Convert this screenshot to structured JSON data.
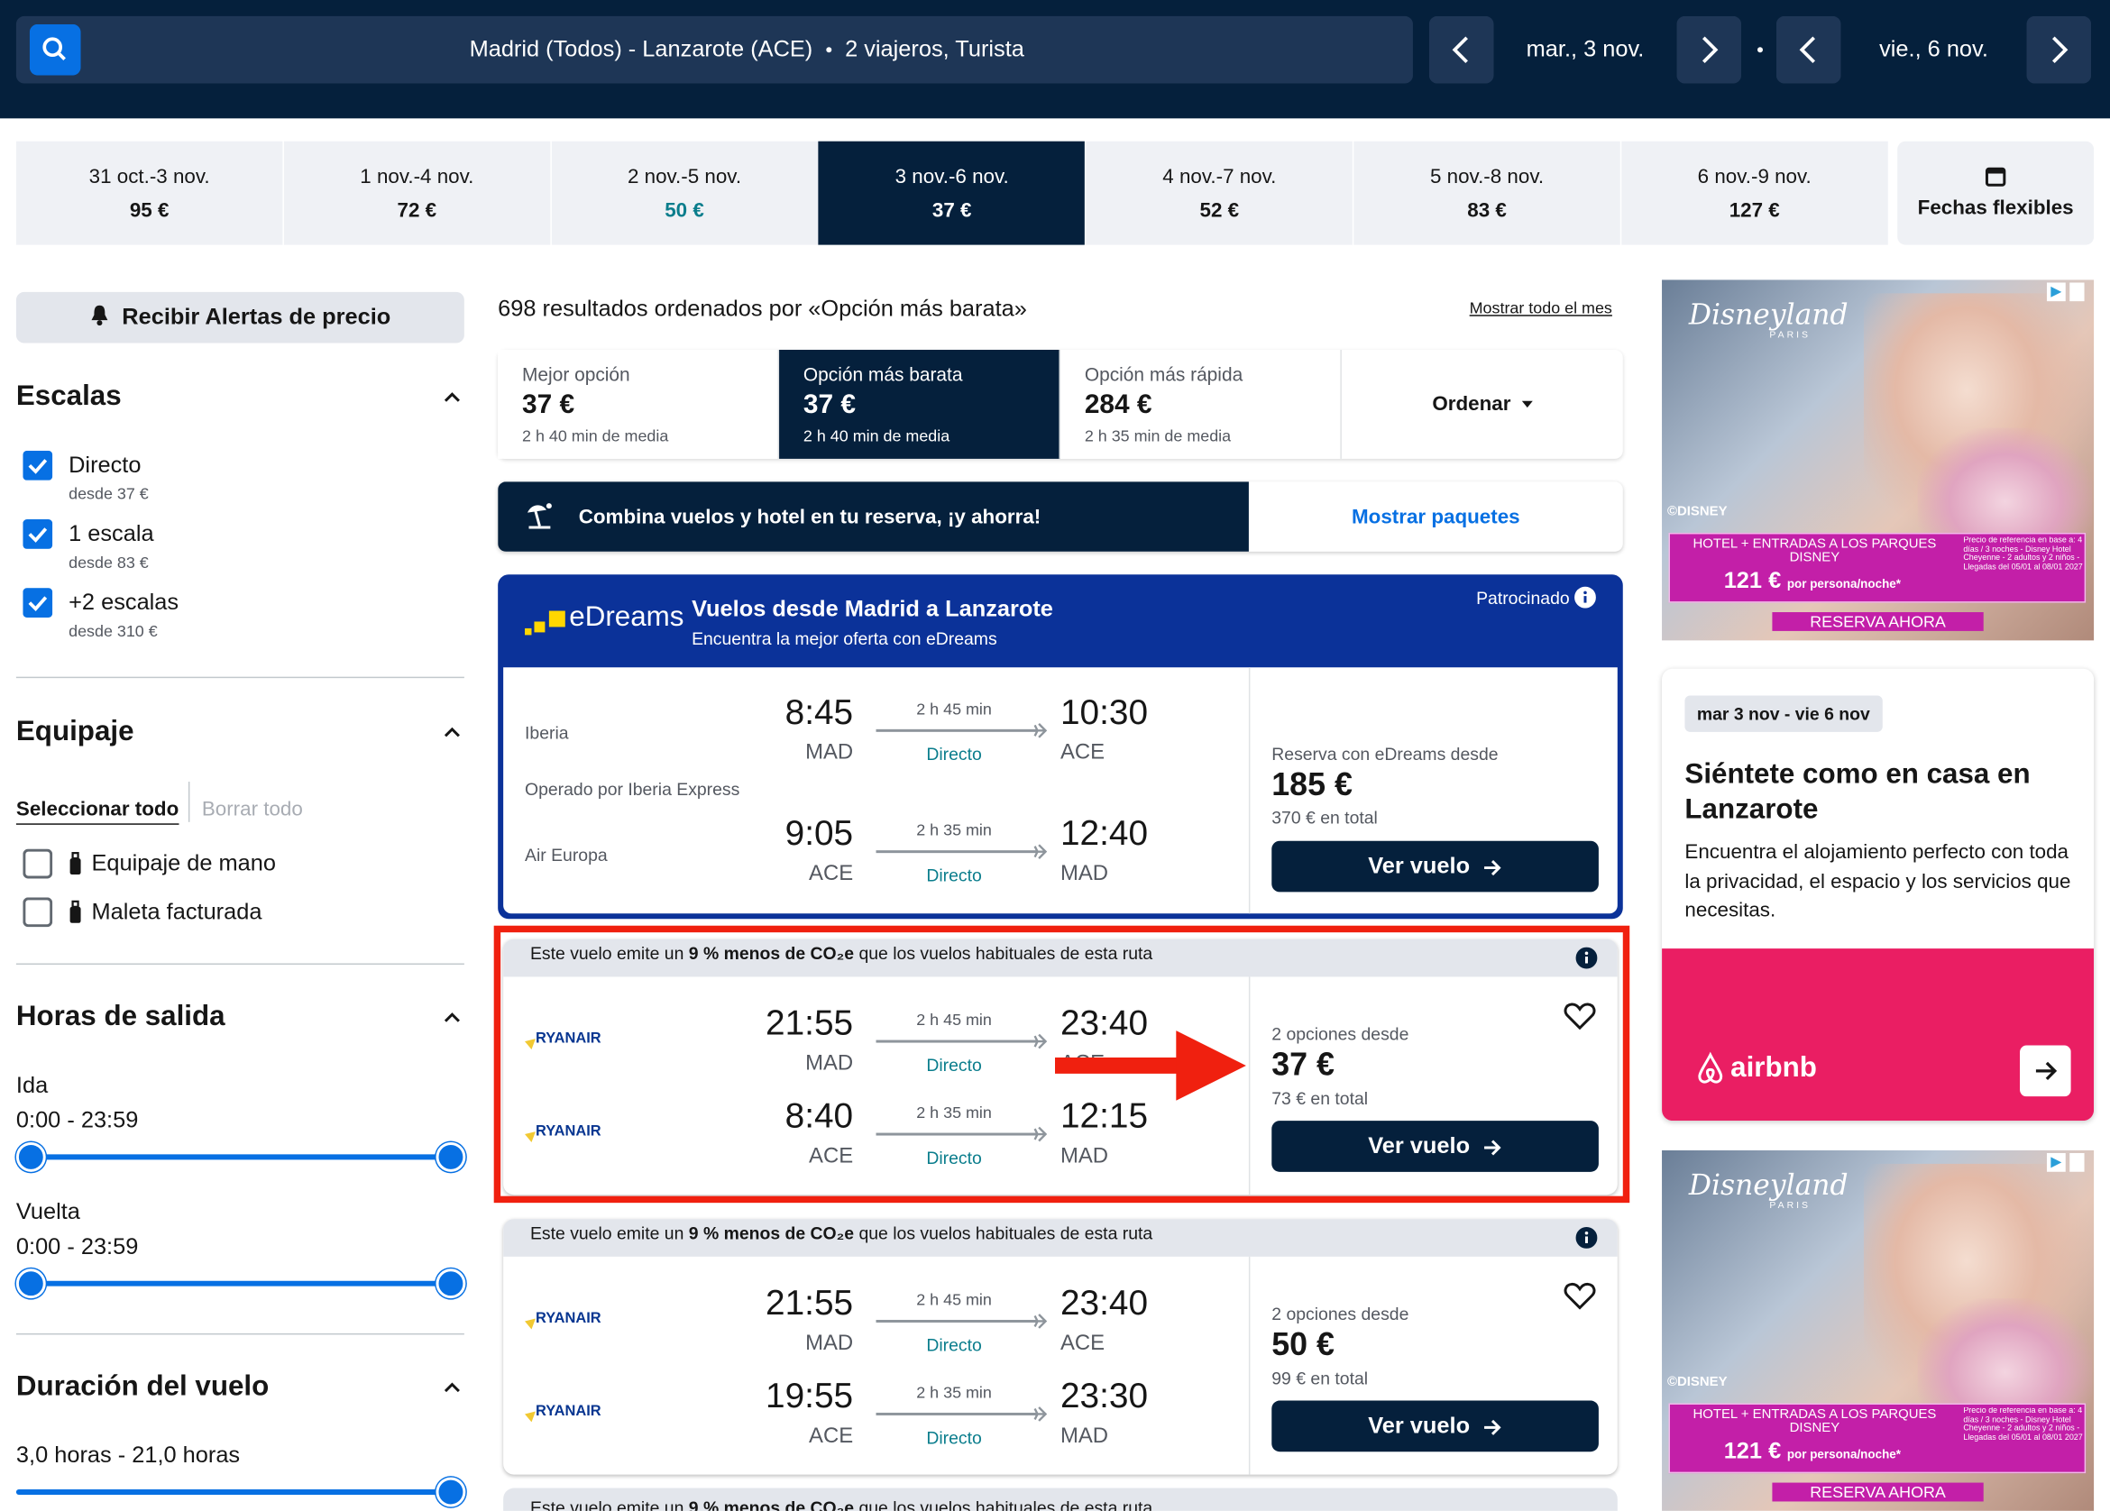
{
  "header": {
    "route": "Madrid (Todos) - Lanzarote (ACE)",
    "travelers": "2 viajeros, Turista",
    "depart": "mar., 3 nov.",
    "return": "vie., 6 nov."
  },
  "dates": {
    "items": [
      {
        "range": "31 oct.-3 nov.",
        "price": "95 €"
      },
      {
        "range": "1 nov.-4 nov.",
        "price": "72 €"
      },
      {
        "range": "2 nov.-5 nov.",
        "price": "50 €"
      },
      {
        "range": "3 nov.-6 nov.",
        "price": "37 €"
      },
      {
        "range": "4 nov.-7 nov.",
        "price": "52 €"
      },
      {
        "range": "5 nov.-8 nov.",
        "price": "83 €"
      },
      {
        "range": "6 nov.-9 nov.",
        "price": "127 €"
      }
    ],
    "flexible": "Fechas flexibles"
  },
  "sidebar": {
    "alert": "Recibir Alertas de precio",
    "stops": {
      "title": "Escalas",
      "options": [
        {
          "label": "Directo",
          "from": "desde 37 €"
        },
        {
          "label": "1 escala",
          "from": "desde 83 €"
        },
        {
          "label": "+2 escalas",
          "from": "desde 310 €"
        }
      ]
    },
    "baggage": {
      "title": "Equipaje",
      "select_all": "Seleccionar todo",
      "clear_all": "Borrar todo",
      "options": [
        "Equipaje de mano",
        "Maleta facturada"
      ]
    },
    "times": {
      "title": "Horas de salida",
      "outbound": "Ida",
      "outbound_range": "0:00 - 23:59",
      "return": "Vuelta",
      "return_range": "0:00 - 23:59"
    },
    "duration": {
      "title": "Duración del vuelo",
      "range": "3,0 horas - 21,0 horas"
    }
  },
  "results": {
    "summary": "698 resultados ordenados por «Opción más barata»",
    "show_month": "Mostrar todo el mes",
    "tabs": [
      {
        "label": "Mejor opción",
        "price": "37 €",
        "sub": "2 h 40 min de media"
      },
      {
        "label": "Opción más barata",
        "price": "37 €",
        "sub": "2 h 40 min de media"
      },
      {
        "label": "Opción más rápida",
        "price": "284 €",
        "sub": "2 h 35 min de media"
      }
    ],
    "sort": "Ordenar",
    "banner": {
      "text": "Combina vuelos y hotel en tu reserva, ¡y ahorra!",
      "action": "Mostrar paquetes"
    },
    "sponsored": {
      "brand": "eDreams",
      "title": "Vuelos desde Madrid a Lanzarote",
      "subtitle": "Encuentra la mejor oferta con eDreams",
      "tag": "Patrocinado",
      "legs": [
        {
          "airline": "Iberia",
          "dep": "8:45",
          "dep_code": "MAD",
          "duration": "2 h 45 min",
          "stops": "Directo",
          "arr": "10:30",
          "arr_code": "ACE"
        },
        {
          "airline": "Air Europa",
          "dep": "9:05",
          "dep_code": "ACE",
          "duration": "2 h 35 min",
          "stops": "Directo",
          "arr": "12:40",
          "arr_code": "MAD"
        }
      ],
      "operated": "Operado por Iberia Express",
      "from": "Reserva con eDreams desde",
      "price": "185 €",
      "total": "370 € en total",
      "button": "Ver vuelo"
    },
    "co2": {
      "pre": "Este vuelo emite un ",
      "bold": "9 % menos de CO₂e",
      "post": " que los vuelos habituales de esta ruta"
    },
    "cards": [
      {
        "legs": [
          {
            "airline": "RYANAIR",
            "dep": "21:55",
            "dep_code": "MAD",
            "duration": "2 h 45 min",
            "stops": "Directo",
            "arr": "23:40",
            "arr_code": "ACE"
          },
          {
            "airline": "RYANAIR",
            "dep": "8:40",
            "dep_code": "ACE",
            "duration": "2 h 35 min",
            "stops": "Directo",
            "arr": "12:15",
            "arr_code": "MAD"
          }
        ],
        "from": "2 opciones desde",
        "price": "37 €",
        "total": "73 € en total",
        "button": "Ver vuelo"
      },
      {
        "legs": [
          {
            "airline": "RYANAIR",
            "dep": "21:55",
            "dep_code": "MAD",
            "duration": "2 h 45 min",
            "stops": "Directo",
            "arr": "23:40",
            "arr_code": "ACE"
          },
          {
            "airline": "RYANAIR",
            "dep": "19:55",
            "dep_code": "ACE",
            "duration": "2 h 35 min",
            "stops": "Directo",
            "arr": "23:30",
            "arr_code": "MAD"
          }
        ],
        "from": "2 opciones desde",
        "price": "50 €",
        "total": "99 € en total",
        "button": "Ver vuelo"
      }
    ]
  },
  "ads": {
    "disney": {
      "logo": "Disneyland",
      "logo_sub": "PARIS",
      "copyright": "©DISNEY",
      "offer": "HOTEL + ENTRADAS A LOS PARQUES DISNEY",
      "price": "121 €",
      "per": "por persona/noche*",
      "fine": "Precio de referencia en base a: 4 días / 3 noches - Disney Hotel Cheyenne - 2 adultos y 2 niños - Llegadas del 05/01 al 08/01 2027",
      "cta": "RESERVA AHORA"
    },
    "airbnb": {
      "dates": "mar 3 nov - vie 6 nov",
      "title": "Siéntete como en casa en Lanzarote",
      "text": "Encuentra el alojamiento perfecto con toda la privacidad, el espacio y los servicios que necesitas.",
      "brand": "airbnb"
    }
  }
}
